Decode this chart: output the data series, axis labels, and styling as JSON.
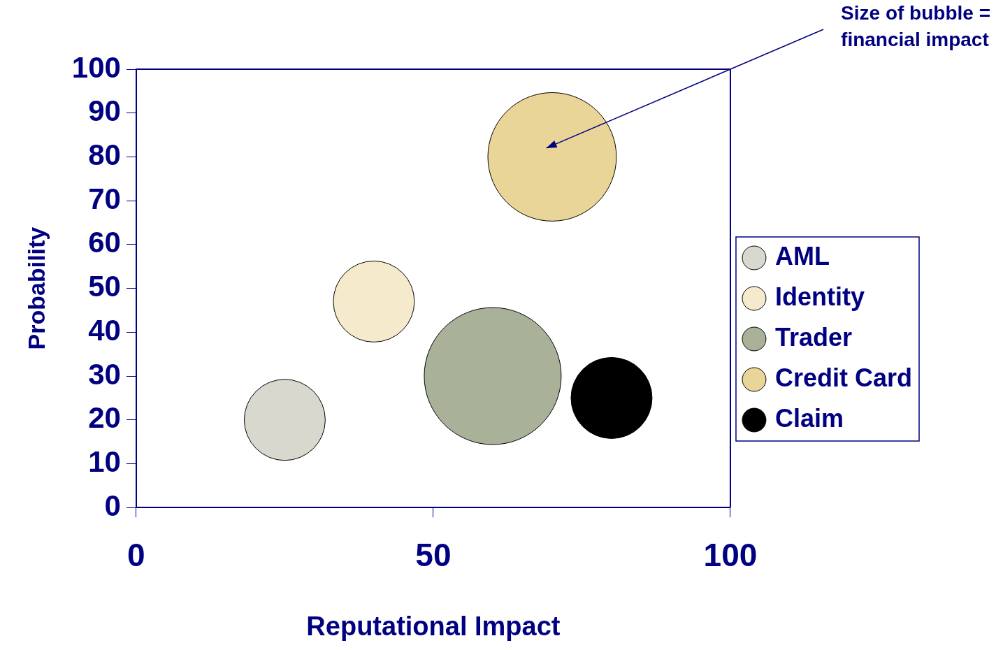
{
  "chart_data": {
    "type": "bubble",
    "xlabel": "Reputational Impact",
    "ylabel": "Probability",
    "xlim": [
      0,
      100
    ],
    "xticks": [
      0,
      50,
      100
    ],
    "ylim": [
      0,
      100
    ],
    "yticks": [
      0,
      10,
      20,
      30,
      40,
      50,
      60,
      70,
      80,
      90,
      100
    ],
    "legend": "right",
    "marker": "circle",
    "annotations": [
      "Size of bubble = financial impact"
    ],
    "series": [
      {
        "name": "AML",
        "color": "#d8d8cf",
        "x": [
          25
        ],
        "values": [
          20
        ],
        "sizes": [
          0.35
        ]
      },
      {
        "name": "Identity",
        "color": "#f5ebcc",
        "x": [
          40
        ],
        "values": [
          47
        ],
        "sizes": [
          0.35
        ]
      },
      {
        "name": "Trader",
        "color": "#a9b198",
        "x": [
          60
        ],
        "values": [
          30
        ],
        "sizes": [
          1
        ]
      },
      {
        "name": "Credit Card",
        "color": "#e9d597",
        "x": [
          70
        ],
        "values": [
          80
        ],
        "sizes": [
          0.88
        ]
      },
      {
        "name": "Claim",
        "color": "#000000",
        "x": [
          80
        ],
        "values": [
          25
        ],
        "sizes": [
          0.35
        ]
      }
    ]
  }
}
